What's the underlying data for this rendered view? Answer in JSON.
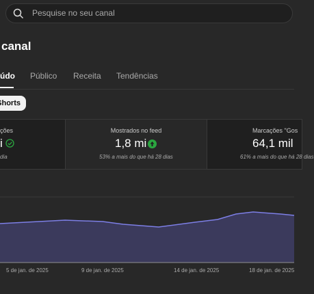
{
  "search": {
    "placeholder": "Pesquise no seu canal"
  },
  "header": {
    "title": "canal"
  },
  "tabs": [
    "údo",
    "Público",
    "Receita",
    "Tendências"
  ],
  "filter": "Shorts",
  "cards": [
    {
      "label": "ções",
      "value": "i",
      "note": "dia"
    },
    {
      "label": "Mostrados no feed",
      "value": "1,8 mi",
      "note": "53% a mais do que há 28 dias"
    },
    {
      "label": "Marcações \"Gos",
      "value": "64,1 mil",
      "note": "61% a mais do que há 28 dias"
    }
  ],
  "chart": {
    "x_labels": [
      "5 de jan. de 2025",
      "9 de jan. de 2025",
      "14 de jan. de 2025",
      "18 de jan. de 2025"
    ]
  }
}
